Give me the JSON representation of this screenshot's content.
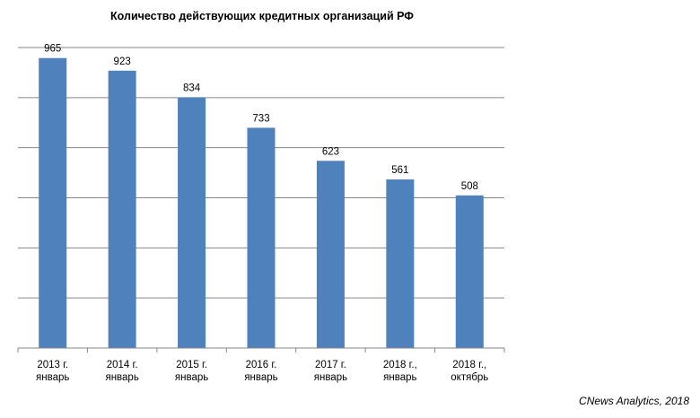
{
  "chart_data": {
    "type": "bar",
    "title": "Количество действующих кредитных организаций РФ",
    "categories": [
      [
        "2013 г.",
        "январь"
      ],
      [
        "2014 г.",
        "январь"
      ],
      [
        "2015 г.",
        "январь"
      ],
      [
        "2016 г.",
        "январь"
      ],
      [
        "2017 г.",
        "январь"
      ],
      [
        "2018 г.,",
        "январь"
      ],
      [
        "2018 г.,",
        "октябрь"
      ]
    ],
    "values": [
      965,
      923,
      834,
      733,
      623,
      561,
      508
    ],
    "ylim": [
      0,
      1000
    ],
    "grid": true,
    "colors": {
      "bar": "#4f81bd",
      "grid": "#868686",
      "axis": "#868686"
    }
  },
  "source": "CNews Analytics, 2018"
}
